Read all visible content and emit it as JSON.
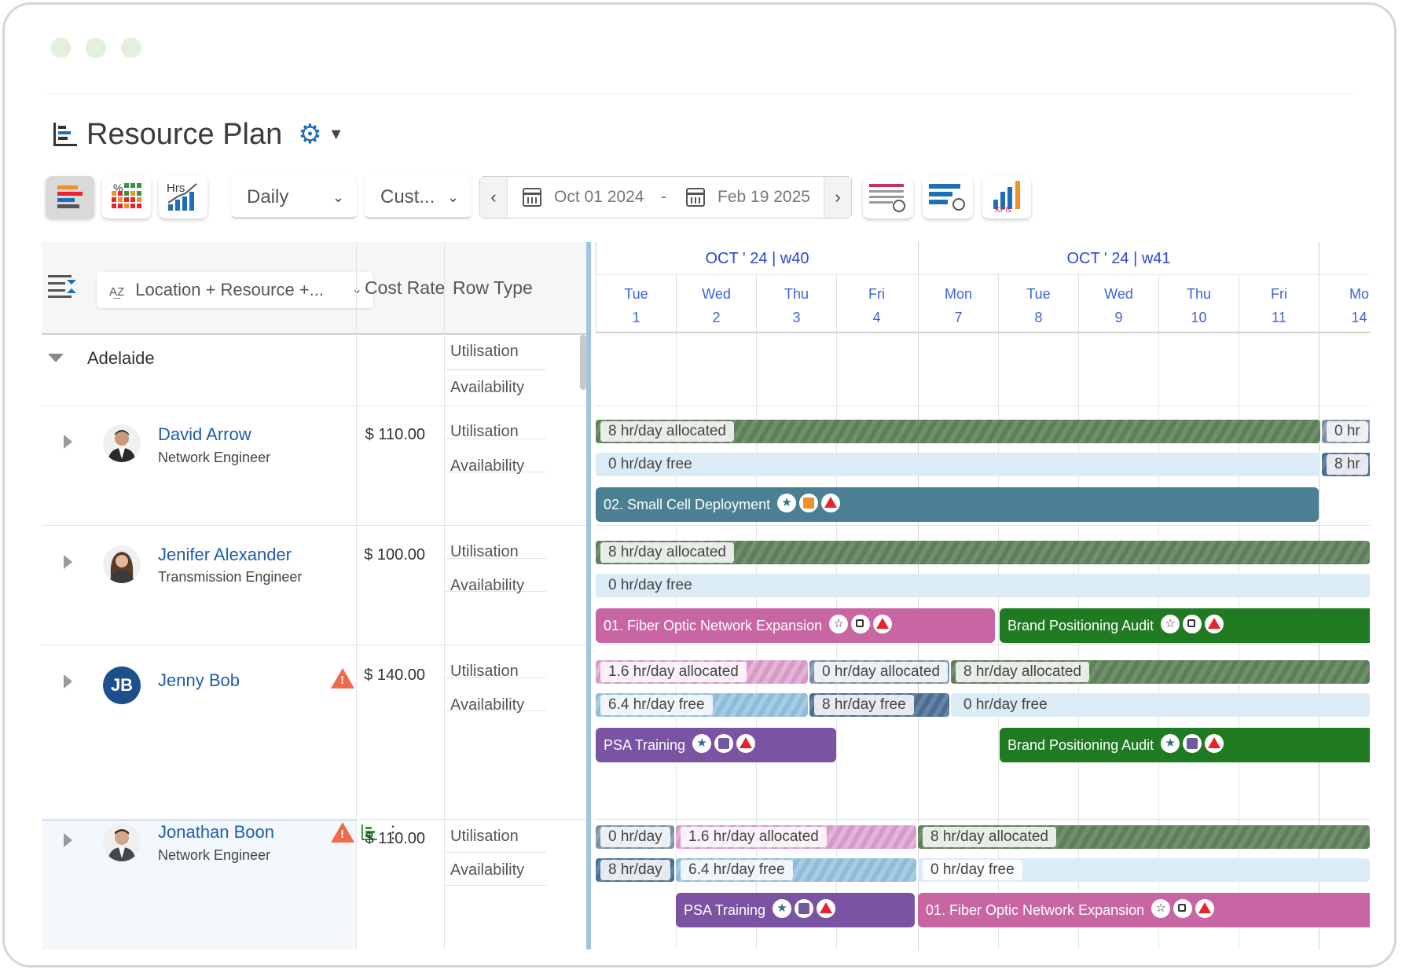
{
  "window": {
    "title": "Resource Plan"
  },
  "toolbar": {
    "view_select": "Daily",
    "custom_select": "Cust...",
    "date_from": "Oct 01 2024",
    "date_sep": "-",
    "date_to": "Feb 19 2025",
    "hrs_label": "Hrs",
    "pct_label": "%",
    "kpi_label": "KPIs"
  },
  "grid": {
    "group_by": "Location + Resource +...",
    "col_cost_rate": "Cost Rate",
    "col_row_type": "Row Type"
  },
  "timeline": {
    "weeks": [
      {
        "label": "OCT ' 24 | w40"
      },
      {
        "label": "OCT ' 24 | w41"
      }
    ],
    "days": [
      {
        "name": "Tue",
        "num": "1"
      },
      {
        "name": "Wed",
        "num": "2"
      },
      {
        "name": "Thu",
        "num": "3"
      },
      {
        "name": "Fri",
        "num": "4"
      },
      {
        "name": "Mon",
        "num": "7"
      },
      {
        "name": "Tue",
        "num": "8"
      },
      {
        "name": "Wed",
        "num": "9"
      },
      {
        "name": "Thu",
        "num": "10"
      },
      {
        "name": "Fri",
        "num": "11"
      },
      {
        "name": "Mo",
        "num": "14"
      }
    ]
  },
  "group": {
    "name": "Adelaide",
    "row_types": [
      "Utilisation",
      "Availability"
    ]
  },
  "resources": [
    {
      "name": "David Arrow",
      "role": "Network Engineer",
      "rate": "$ 110.00",
      "row_types": [
        "Utilisation",
        "Availability"
      ],
      "util": [
        {
          "label": "8 hr/day allocated"
        },
        {
          "label": "0 hr"
        }
      ],
      "avail": [
        {
          "label": "0 hr/day free"
        },
        {
          "label": "8 hr"
        }
      ],
      "tasks": [
        {
          "label": "02. Small Cell Deployment",
          "color": "#4a7f94"
        }
      ]
    },
    {
      "name": "Jenifer Alexander",
      "role": "Transmission Engineer",
      "rate": "$ 100.00",
      "row_types": [
        "Utilisation",
        "Availability"
      ],
      "util": [
        {
          "label": "8 hr/day allocated"
        }
      ],
      "avail": [
        {
          "label": "0 hr/day free"
        }
      ],
      "tasks": [
        {
          "label": "01. Fiber Optic Network Expansion",
          "color": "#c866a3"
        },
        {
          "label": "Brand Positioning Audit",
          "color": "#1f7a22"
        }
      ]
    },
    {
      "name": "Jenny Bob",
      "initials": "JB",
      "role": "",
      "rate": "$ 140.00",
      "row_types": [
        "Utilisation",
        "Availability"
      ],
      "util": [
        {
          "label": "1.6 hr/day allocated"
        },
        {
          "label": "0 hr/day allocated"
        },
        {
          "label": "8 hr/day allocated"
        }
      ],
      "avail": [
        {
          "label": "6.4 hr/day free"
        },
        {
          "label": "8 hr/day free"
        },
        {
          "label": "0 hr/day free"
        }
      ],
      "tasks": [
        {
          "label": "PSA Training",
          "color": "#7a54a3"
        },
        {
          "label": "Brand Positioning Audit",
          "color": "#1f7a22"
        }
      ]
    },
    {
      "name": "Jonathan Boon",
      "role": "Network Engineer",
      "rate": "$ 110.00",
      "row_types": [
        "Utilisation",
        "Availability"
      ],
      "util": [
        {
          "label": "0 hr/day"
        },
        {
          "label": "1.6 hr/day allocated"
        },
        {
          "label": "8 hr/day allocated"
        }
      ],
      "avail": [
        {
          "label": "8 hr/day"
        },
        {
          "label": "6.4 hr/day free"
        },
        {
          "label": "0 hr/day free"
        }
      ],
      "tasks": [
        {
          "label": "PSA Training",
          "color": "#7a54a3"
        },
        {
          "label": "01. Fiber Optic Network Expansion",
          "color": "#c866a3"
        }
      ]
    }
  ],
  "colors": {
    "accent": "#1e6fb8",
    "week_header": "#2b47d8",
    "warning": "#f06a4a"
  }
}
